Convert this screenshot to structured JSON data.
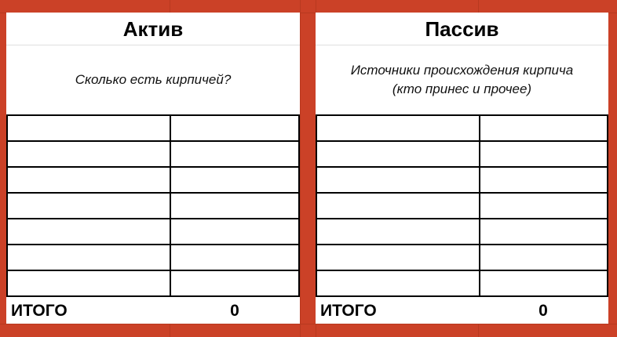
{
  "colors": {
    "background": "#cb4127"
  },
  "panels": [
    {
      "title": "Актив",
      "subtitle": "Сколько есть кирпичей?",
      "rows": 7,
      "total_label": "ИТОГО",
      "total_value": "0"
    },
    {
      "title": "Пассив",
      "subtitle": "Источники происхождения кирпича\n(кто принес и прочее)",
      "rows": 7,
      "total_label": "ИТОГО",
      "total_value": "0"
    }
  ]
}
